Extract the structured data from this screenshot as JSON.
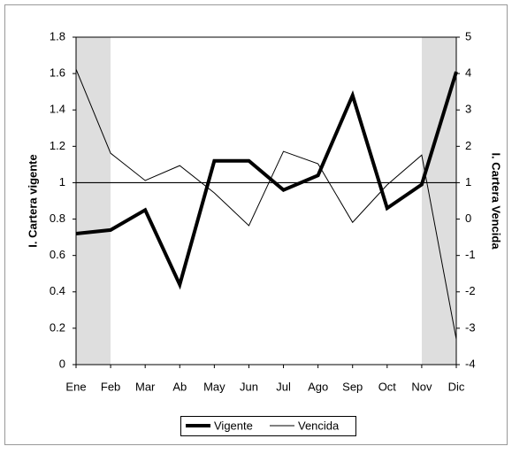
{
  "chart_data": {
    "type": "line",
    "y_label": "I. Cartera vigente",
    "y2_label": "I. Cartera Vencida",
    "categories": [
      "Ene",
      "Feb",
      "Mar",
      "Ab",
      "May",
      "Jun",
      "Jul",
      "Ago",
      "Sep",
      "Oct",
      "Nov",
      "Dic"
    ],
    "series": [
      {
        "name": "Vigente",
        "color": "#000000",
        "values": [
          0.72,
          0.74,
          0.85,
          0.44,
          1.12,
          1.12,
          0.96,
          1.04,
          1.48,
          0.86,
          0.99,
          1.61
        ]
      },
      {
        "name": "Vencida",
        "color": "#000000",
        "axis": "y2",
        "values": [
          4.12,
          1.81,
          1.06,
          1.47,
          0.72,
          -0.18,
          1.86,
          1.52,
          -0.09,
          0.94,
          1.76,
          -3.3
        ]
      }
    ],
    "ylim": [
      0,
      1.8
    ],
    "yticks": [
      0,
      0.2,
      0.4,
      0.6,
      0.8,
      1,
      1.2,
      1.4,
      1.6,
      1.8
    ],
    "y2lim": [
      -4,
      5
    ],
    "y2ticks": [
      -4,
      -3,
      -2,
      -1,
      0,
      1,
      2,
      3,
      4,
      5
    ],
    "reference_line": 1,
    "legend": "bottom"
  }
}
